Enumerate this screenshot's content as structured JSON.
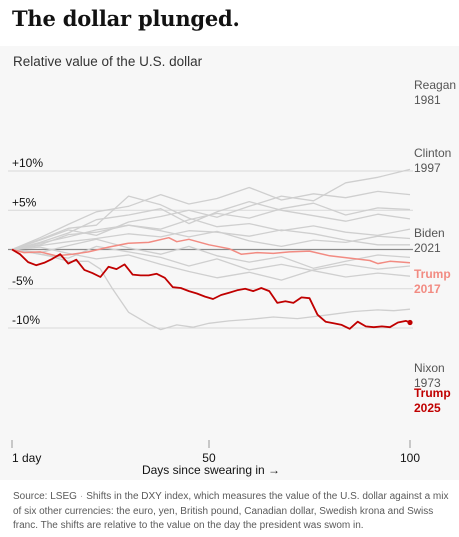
{
  "headline": "The dollar plunged.",
  "source": {
    "label": "Source: LSEG",
    "note": "Shifts in the DXY index, which measures the value of the U.S. dollar against a mix of six other currencies: the euro, yen, British pound, Canadian dollar, Swedish krona and Swiss franc. The shifts are relative to the value on the day the president was swom in."
  },
  "colors": {
    "background": "#f7f7f7",
    "grey_series": "#cfcfcf",
    "trump_2017": "#f28b82",
    "trump_2025": "#c00000",
    "zero_line": "#8a8a8a",
    "grid": "#d9d9d9"
  },
  "chart_data": {
    "type": "line",
    "title": "Relative value of the U.S. dollar",
    "xlabel": "Days since swearing in →",
    "ylabel": "",
    "xlim": [
      1,
      100
    ],
    "ylim": [
      -12,
      11
    ],
    "grid": true,
    "x_ticks": [
      {
        "value": 1,
        "label": "1 day"
      },
      {
        "value": 50,
        "label": "50"
      },
      {
        "value": 100,
        "label": "100"
      }
    ],
    "y_ticks": [
      {
        "value": 10,
        "label": "+10%"
      },
      {
        "value": 5,
        "label": "+5%"
      },
      {
        "value": 0,
        "label": ""
      },
      {
        "value": -5,
        "label": "-5%"
      },
      {
        "value": -10,
        "label": "-10%"
      }
    ],
    "series": [
      {
        "name": "Reagan 1981",
        "highlight": "grey",
        "label_lines": [
          "Reagan",
          "1981"
        ],
        "x": [
          1,
          8,
          15,
          22,
          30,
          38,
          45,
          52,
          60,
          68,
          76,
          84,
          92,
          100
        ],
        "values": [
          0,
          1.2,
          2.5,
          1.8,
          3.5,
          4.2,
          5.0,
          4.1,
          5.5,
          6.8,
          6.2,
          8.5,
          9.2,
          10.2
        ]
      },
      {
        "name": "Clinton 1997",
        "highlight": "grey",
        "label_lines": [
          "Clinton",
          "1997"
        ],
        "x": [
          1,
          8,
          15,
          22,
          30,
          38,
          45,
          52,
          60,
          68,
          76,
          84,
          92,
          100
        ],
        "values": [
          0,
          0.8,
          1.6,
          2.5,
          3.1,
          2.6,
          3.8,
          4.6,
          4.0,
          5.2,
          5.9,
          4.4,
          5.3,
          5.1
        ]
      },
      {
        "name": "Biden 2021",
        "highlight": "grey",
        "label_lines": [
          "Biden",
          "2021"
        ],
        "x": [
          1,
          8,
          15,
          22,
          30,
          38,
          45,
          52,
          60,
          68,
          76,
          84,
          92,
          100
        ],
        "values": [
          0,
          0.5,
          1.0,
          1.4,
          2.0,
          1.6,
          2.4,
          2.2,
          1.7,
          2.5,
          2.0,
          1.2,
          0.6,
          0.6
        ]
      },
      {
        "name": "Trump 2017",
        "highlight": "light",
        "label_lines": [
          "Trump",
          "2017"
        ],
        "x": [
          1,
          4,
          8,
          12,
          16,
          20,
          25,
          30,
          35,
          40,
          42,
          45,
          50,
          55,
          58,
          62,
          66,
          70,
          75,
          80,
          85,
          90,
          92,
          95,
          98,
          100
        ],
        "values": [
          0,
          -0.4,
          -0.3,
          -0.8,
          -0.6,
          -0.3,
          0.3,
          0.8,
          0.9,
          1.5,
          1.0,
          1.3,
          0.6,
          0.1,
          -0.6,
          -0.4,
          -0.5,
          -0.3,
          -0.2,
          -0.8,
          -1.1,
          -1.4,
          -1.8,
          -1.5,
          -1.6,
          -1.7
        ]
      },
      {
        "name": "Nixon 1973",
        "highlight": "grey",
        "label_lines": [
          "Nixon",
          "1973"
        ],
        "x": [
          1,
          5,
          10,
          15,
          20,
          23,
          26,
          30,
          35,
          38,
          42,
          46,
          50,
          55,
          60,
          66,
          72,
          80,
          86,
          92,
          96,
          100
        ],
        "values": [
          0,
          -0.3,
          -0.8,
          -1.5,
          -1.5,
          -2.5,
          -5.0,
          -8.0,
          -9.5,
          -10.2,
          -9.6,
          -9.9,
          -9.4,
          -9.1,
          -8.9,
          -8.6,
          -8.8,
          -8.3,
          -7.9,
          -7.7,
          -7.8,
          -7.6
        ]
      },
      {
        "name": "Trump 2025",
        "highlight": "dark",
        "label_lines": [
          "Trump",
          "2025"
        ],
        "x": [
          1,
          3,
          5,
          7,
          9,
          11,
          13,
          15,
          17,
          19,
          21,
          23,
          25,
          27,
          29,
          31,
          33,
          35,
          37,
          39,
          41,
          43,
          45,
          47,
          49,
          51,
          53,
          55,
          57,
          59,
          61,
          63,
          65,
          67,
          69,
          71,
          73,
          75,
          77,
          79,
          81,
          83,
          85,
          87,
          89,
          91,
          93,
          95,
          97,
          99,
          100
        ],
        "values": [
          0,
          -0.6,
          -1.6,
          -2.0,
          -1.7,
          -1.2,
          -0.6,
          -1.8,
          -1.3,
          -2.6,
          -3.0,
          -3.5,
          -2.2,
          -2.5,
          -1.9,
          -3.2,
          -3.3,
          -3.3,
          -3.1,
          -3.6,
          -4.8,
          -4.9,
          -5.3,
          -5.6,
          -6.0,
          -6.3,
          -5.8,
          -5.5,
          -5.2,
          -5.0,
          -5.3,
          -4.9,
          -5.3,
          -6.8,
          -6.6,
          -6.8,
          -6.1,
          -6.2,
          -8.3,
          -9.2,
          -9.4,
          -9.6,
          -10.1,
          -9.2,
          -9.8,
          -9.9,
          -9.8,
          -9.9,
          -9.3,
          -9.1,
          -9.3
        ]
      },
      {
        "name": "",
        "highlight": "grey",
        "x": [
          1,
          8,
          15,
          22,
          30,
          38,
          45,
          52,
          60,
          68,
          76,
          84,
          92,
          100
        ],
        "values": [
          0,
          1.5,
          3.2,
          4.8,
          5.5,
          7.0,
          5.8,
          6.5,
          7.9,
          6.3,
          7.1,
          6.6,
          7.4,
          7.0
        ]
      },
      {
        "name": "",
        "highlight": "grey",
        "x": [
          1,
          8,
          15,
          22,
          30,
          38,
          45,
          52,
          60,
          68,
          76,
          84,
          92,
          100
        ],
        "values": [
          0,
          0.9,
          2.1,
          3.8,
          4.4,
          5.2,
          3.3,
          4.8,
          6.1,
          5.0,
          4.3,
          3.6,
          4.5,
          3.9
        ]
      },
      {
        "name": "",
        "highlight": "grey",
        "x": [
          1,
          8,
          15,
          22,
          30,
          38,
          45,
          52,
          60,
          68,
          76,
          84,
          92,
          100
        ],
        "values": [
          0,
          1.3,
          2.7,
          3.1,
          6.8,
          5.7,
          4.0,
          2.9,
          3.3,
          2.4,
          3.0,
          2.2,
          1.8,
          2.6
        ]
      },
      {
        "name": "",
        "highlight": "grey",
        "x": [
          1,
          8,
          15,
          22,
          30,
          38,
          45,
          52,
          60,
          68,
          76,
          84,
          92,
          100
        ],
        "values": [
          0,
          0.6,
          1.9,
          2.2,
          3.1,
          2.4,
          1.6,
          2.3,
          1.1,
          0.4,
          1.2,
          0.9,
          1.7,
          1.4
        ]
      },
      {
        "name": "",
        "highlight": "grey",
        "x": [
          1,
          8,
          15,
          22,
          30,
          38,
          45,
          52,
          60,
          68,
          76,
          84,
          92,
          100
        ],
        "values": [
          0,
          -0.4,
          0.5,
          1.3,
          0.2,
          -0.6,
          0.4,
          -0.8,
          -1.6,
          -0.9,
          -2.4,
          -1.5,
          -0.7,
          -1.0
        ]
      },
      {
        "name": "",
        "highlight": "grey",
        "x": [
          1,
          8,
          15,
          22,
          30,
          38,
          45,
          52,
          60,
          68,
          76,
          84,
          92,
          100
        ],
        "values": [
          0,
          -0.6,
          -1.1,
          0.4,
          -0.3,
          -1.0,
          -2.1,
          -1.2,
          -2.6,
          -1.9,
          -2.7,
          -3.5,
          -3.0,
          -3.4
        ]
      },
      {
        "name": "",
        "highlight": "grey",
        "x": [
          1,
          8,
          15,
          22,
          30,
          38,
          45,
          52,
          60,
          68,
          76,
          84,
          92,
          100
        ],
        "values": [
          0,
          0.3,
          -0.5,
          -1.2,
          -0.7,
          -1.9,
          -2.8,
          -3.6,
          -2.9,
          -3.9,
          -2.6,
          -1.9,
          -2.5,
          -2.1
        ]
      }
    ]
  }
}
